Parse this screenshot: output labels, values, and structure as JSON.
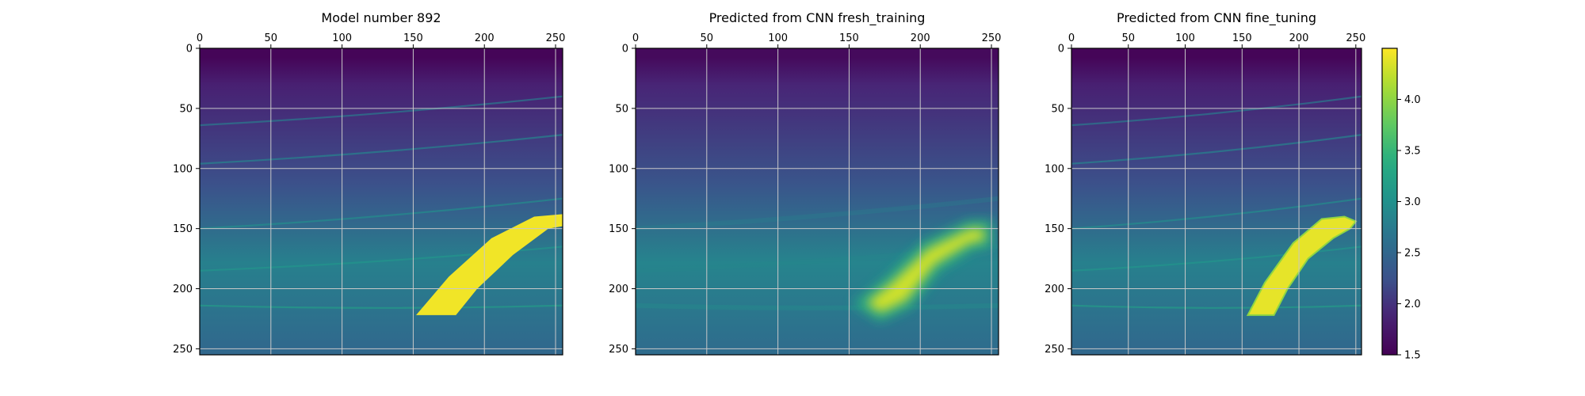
{
  "chart_data": [
    {
      "type": "heatmap",
      "title": "Model number 892",
      "xlim": [
        0,
        255
      ],
      "ylim": [
        255,
        0
      ],
      "xticks": [
        0,
        50,
        100,
        150,
        200,
        250
      ],
      "yticks": [
        0,
        50,
        100,
        150,
        200,
        250
      ],
      "x_axis_position": "top",
      "grid": true,
      "field": {
        "kind": "true-model",
        "background_top": 1.55,
        "background_bottom": 2.5,
        "layer_depths_left": [
          64,
          96,
          150,
          185,
          214
        ],
        "layer_depths_right": [
          40,
          72,
          125,
          165,
          214
        ],
        "body": {
          "value": 4.45,
          "top_edge": [
            [
              152,
              222
            ],
            [
              175,
              190
            ],
            [
              205,
              158
            ],
            [
              235,
              140
            ],
            [
              255,
              138
            ]
          ],
          "bottom_edge": [
            [
              180,
              222
            ],
            [
              195,
              200
            ],
            [
              220,
              172
            ],
            [
              245,
              150
            ],
            [
              255,
              148
            ]
          ]
        }
      }
    },
    {
      "type": "heatmap",
      "title": "Predicted from CNN fresh_training",
      "xlim": [
        0,
        255
      ],
      "ylim": [
        255,
        0
      ],
      "xticks": [
        0,
        50,
        100,
        150,
        200,
        250
      ],
      "yticks": [
        0,
        50,
        100,
        150,
        200,
        250
      ],
      "x_axis_position": "top",
      "grid": true,
      "field": {
        "kind": "blurred-prediction",
        "background_top": 1.6,
        "background_bottom": 2.55,
        "layer_depths_left": [
          150,
          185,
          214
        ],
        "layer_depths_right": [
          125,
          165,
          214
        ],
        "body": {
          "value": 4.3,
          "top_edge": [
            [
              162,
              212
            ],
            [
              180,
              195
            ],
            [
              205,
              167
            ],
            [
              235,
              150
            ],
            [
              245,
              150
            ]
          ],
          "bottom_edge": [
            [
              172,
              220
            ],
            [
              190,
              210
            ],
            [
              210,
              180
            ],
            [
              235,
              162
            ],
            [
              245,
              160
            ]
          ]
        }
      }
    },
    {
      "type": "heatmap",
      "title": "Predicted from CNN fine_tuning",
      "xlim": [
        0,
        255
      ],
      "ylim": [
        255,
        0
      ],
      "xticks": [
        0,
        50,
        100,
        150,
        200,
        250
      ],
      "yticks": [
        0,
        50,
        100,
        150,
        200,
        250
      ],
      "x_axis_position": "top",
      "grid": true,
      "field": {
        "kind": "prediction",
        "background_top": 1.55,
        "background_bottom": 2.5,
        "layer_depths_left": [
          64,
          96,
          150,
          185,
          214
        ],
        "layer_depths_right": [
          40,
          72,
          125,
          165,
          214
        ],
        "body": {
          "value": 4.4,
          "top_edge": [
            [
              155,
              222
            ],
            [
              170,
              195
            ],
            [
              195,
              162
            ],
            [
              220,
              142
            ],
            [
              240,
              140
            ],
            [
              250,
              144
            ]
          ],
          "bottom_edge": [
            [
              178,
              222
            ],
            [
              190,
              200
            ],
            [
              208,
              175
            ],
            [
              230,
              158
            ],
            [
              245,
              150
            ]
          ]
        }
      }
    }
  ],
  "colorbar": {
    "range": [
      1.5,
      4.5
    ],
    "ticks": [
      "1.5",
      "2.0",
      "2.5",
      "3.0",
      "3.5",
      "4.0"
    ],
    "tick_values": [
      1.5,
      2.0,
      2.5,
      3.0,
      3.5,
      4.0
    ],
    "colormap": "viridis"
  }
}
